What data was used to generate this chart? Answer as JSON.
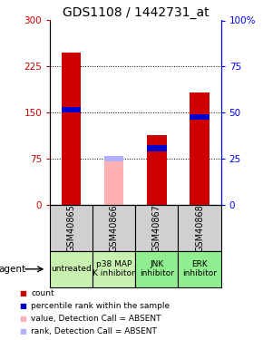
{
  "title": "GDS1108 / 1442731_at",
  "samples": [
    "GSM40865",
    "GSM40866",
    "GSM40867",
    "GSM40868"
  ],
  "agents": [
    "untreated",
    "p38 MAP\nK inhibitor",
    "JNK\ninhibitor",
    "ERK\ninhibitor"
  ],
  "agent_colors": [
    "#c8f0b0",
    "#c8f0b0",
    "#90ee90",
    "#90ee90"
  ],
  "sample_bg": "#d0d0d0",
  "red_bars": [
    248,
    0,
    113,
    183
  ],
  "pink_bars": [
    0,
    78,
    0,
    0
  ],
  "blue_markers": [
    155,
    0,
    92,
    143
  ],
  "light_blue_markers": [
    0,
    75,
    0,
    0
  ],
  "ylim_left": [
    0,
    300
  ],
  "ylim_right": [
    0,
    100
  ],
  "yticks_left": [
    0,
    75,
    150,
    225,
    300
  ],
  "yticks_right": [
    0,
    25,
    50,
    75,
    100
  ],
  "ytick_labels_right": [
    "0",
    "25",
    "50",
    "75",
    "100%"
  ],
  "gridlines": [
    75,
    150,
    225
  ],
  "bar_width": 0.45,
  "red_color": "#cc0000",
  "pink_color": "#ffb0b0",
  "blue_color": "#0000cc",
  "light_blue_color": "#b0b0ff",
  "title_fontsize": 10,
  "tick_fontsize": 7.5,
  "label_fontsize": 7,
  "legend_fontsize": 6.5
}
